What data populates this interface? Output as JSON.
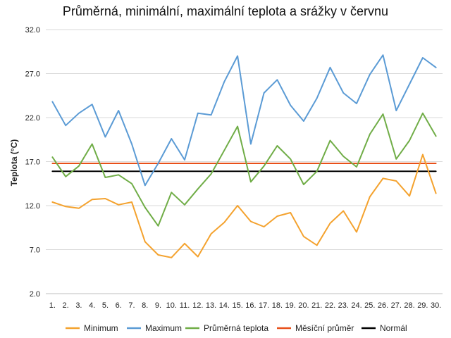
{
  "chart_data": {
    "type": "line",
    "title": "Průměrná, minimální, maximální teplota a srážky v červnu",
    "xlabel": "",
    "ylabel": "Teplota (°C)",
    "ylim": [
      2.0,
      32.0
    ],
    "yticks": [
      "2.0",
      "7.0",
      "12.0",
      "17.0",
      "22.0",
      "27.0",
      "32.0"
    ],
    "ytick_values": [
      2,
      7,
      12,
      17,
      22,
      27,
      32
    ],
    "grid": "horizontal",
    "legend_position": "bottom",
    "categories": [
      "1.",
      "2.",
      "3.",
      "4.",
      "5.",
      "6.",
      "7.",
      "8.",
      "9.",
      "10.",
      "11.",
      "12.",
      "13.",
      "14.",
      "15.",
      "16.",
      "17.",
      "18.",
      "19.",
      "20.",
      "21.",
      "22.",
      "23.",
      "24.",
      "25.",
      "26.",
      "27.",
      "28.",
      "29.",
      "30."
    ],
    "series": [
      {
        "name": "Minimum",
        "color": "#f4a22e",
        "values": [
          12.4,
          11.9,
          11.7,
          12.7,
          12.8,
          12.1,
          12.4,
          7.9,
          6.4,
          6.1,
          7.7,
          6.2,
          8.8,
          10.1,
          12.0,
          10.2,
          9.6,
          10.8,
          11.2,
          8.5,
          7.5,
          10.0,
          11.4,
          9.0,
          13.0,
          15.1,
          14.8,
          13.1,
          17.8,
          13.4
        ]
      },
      {
        "name": "Maximum",
        "color": "#5b9bd5",
        "values": [
          23.8,
          21.1,
          22.5,
          23.5,
          19.8,
          22.8,
          19.0,
          14.3,
          16.8,
          19.6,
          17.2,
          22.5,
          22.3,
          26.1,
          29.0,
          19.0,
          24.8,
          26.3,
          23.4,
          21.6,
          24.2,
          27.7,
          24.8,
          23.6,
          26.9,
          29.1,
          22.8,
          25.8,
          28.8,
          27.7
        ]
      },
      {
        "name": "Průměrná teplota",
        "color": "#70ad47",
        "values": [
          17.5,
          15.3,
          16.5,
          19.0,
          15.2,
          15.5,
          14.5,
          11.8,
          9.7,
          13.5,
          12.1,
          13.9,
          15.6,
          18.3,
          21.0,
          14.7,
          16.5,
          18.8,
          17.3,
          14.4,
          15.9,
          19.4,
          17.6,
          16.4,
          20.1,
          22.4,
          17.3,
          19.4,
          22.5,
          19.9
        ]
      },
      {
        "name": "Měsíční průměr",
        "color": "#e8501a",
        "values": [
          16.8,
          16.8,
          16.8,
          16.8,
          16.8,
          16.8,
          16.8,
          16.8,
          16.8,
          16.8,
          16.8,
          16.8,
          16.8,
          16.8,
          16.8,
          16.8,
          16.8,
          16.8,
          16.8,
          16.8,
          16.8,
          16.8,
          16.8,
          16.8,
          16.8,
          16.8,
          16.8,
          16.8,
          16.8,
          16.8
        ]
      },
      {
        "name": "Normál",
        "color": "#000000",
        "values": [
          15.9,
          15.9,
          15.9,
          15.9,
          15.9,
          15.9,
          15.9,
          15.9,
          15.9,
          15.9,
          15.9,
          15.9,
          15.9,
          15.9,
          15.9,
          15.9,
          15.9,
          15.9,
          15.9,
          15.9,
          15.9,
          15.9,
          15.9,
          15.9,
          15.9,
          15.9,
          15.9,
          15.9,
          15.9,
          15.9
        ]
      }
    ]
  }
}
